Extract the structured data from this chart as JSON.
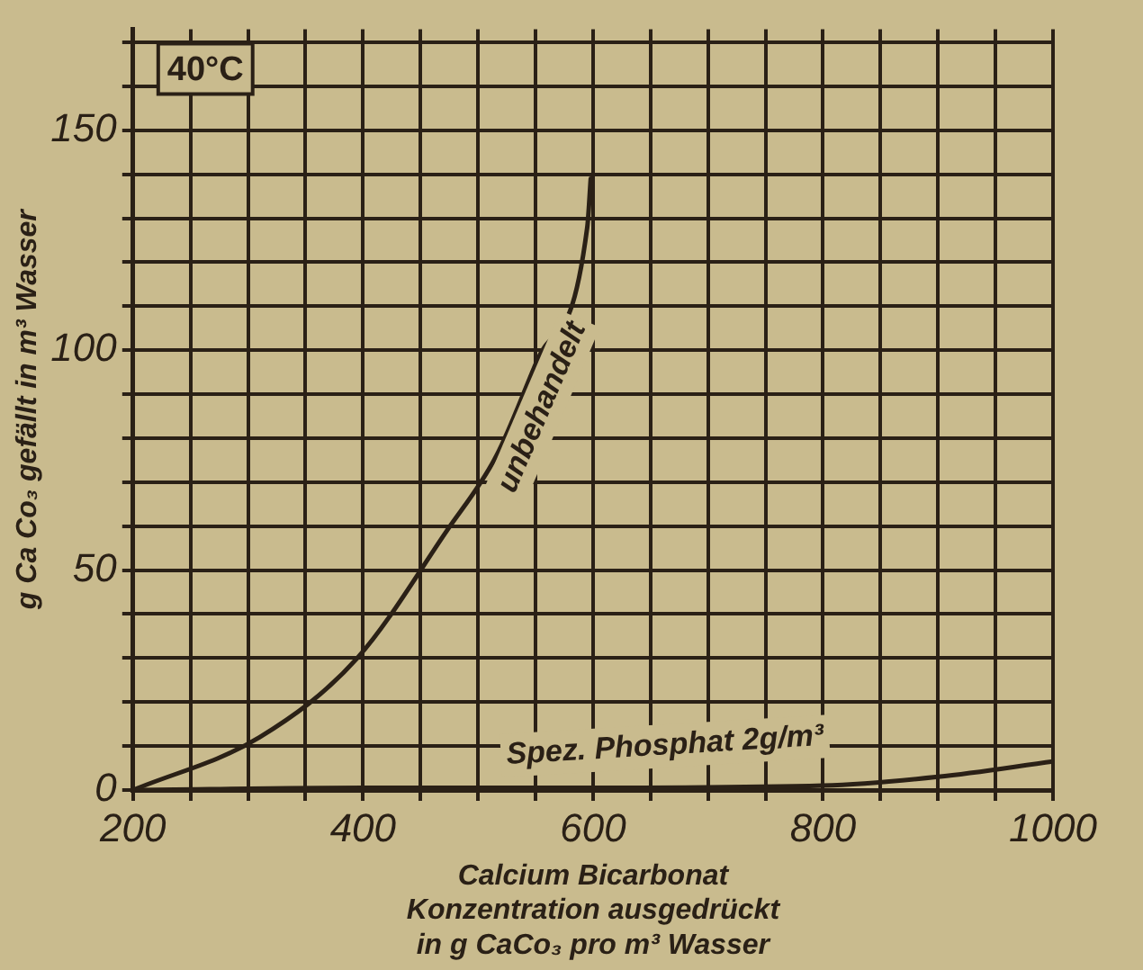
{
  "chart_data": {
    "type": "line",
    "xlabel": "Calcium Bicarbonat\nKonzentration ausgedrückt\nin g CaCo₃ pro m³ Wasser",
    "ylabel": "g Ca Co₃ gefällt in m³ Wasser",
    "annotations": [
      "40°C"
    ],
    "series": [
      {
        "name": "unbehandelt",
        "color": "#2a2016",
        "x": [
          200,
          310,
          395,
          473,
          516,
          552,
          595,
          598
        ],
        "values": [
          0,
          12,
          30,
          59,
          76,
          98,
          128,
          139
        ]
      },
      {
        "name": "Spez. Phosphat 2g/m³",
        "color": "#2a2016",
        "x": [
          200,
          400,
          600,
          800,
          900,
          1000
        ],
        "values": [
          0,
          0.5,
          0.5,
          1,
          3,
          6.5
        ]
      }
    ],
    "xlim": [
      200,
      1000
    ],
    "ylim": [
      0,
      173
    ],
    "xticks": [
      200,
      {
        "value": 250,
        "label": null
      },
      {
        "value": 300,
        "label": null
      },
      {
        "value": 350,
        "label": null
      },
      400,
      {
        "value": 450,
        "label": null
      },
      {
        "value": 500,
        "label": null
      },
      {
        "value": 550,
        "label": null
      },
      600,
      {
        "value": 650,
        "label": null
      },
      {
        "value": 700,
        "label": null
      },
      {
        "value": 750,
        "label": null
      },
      800,
      {
        "value": 850,
        "label": null
      },
      {
        "value": 900,
        "label": null
      },
      {
        "value": 950,
        "label": null
      },
      1000
    ],
    "yticks": [
      0,
      {
        "value": 10,
        "label": null
      },
      {
        "value": 20,
        "label": null
      },
      {
        "value": 30,
        "label": null
      },
      {
        "value": 40,
        "label": null
      },
      50,
      {
        "value": 60,
        "label": null
      },
      {
        "value": 70,
        "label": null
      },
      {
        "value": 80,
        "label": null
      },
      {
        "value": 90,
        "label": null
      },
      100,
      {
        "value": 110,
        "label": null
      },
      {
        "value": 120,
        "label": null
      },
      {
        "value": 130,
        "label": null
      },
      {
        "value": 140,
        "label": null
      },
      150,
      {
        "value": 160,
        "label": null
      },
      {
        "value": 170,
        "label": null
      }
    ],
    "grid": true,
    "legend": false,
    "marker": "none",
    "line_style": "solid"
  }
}
